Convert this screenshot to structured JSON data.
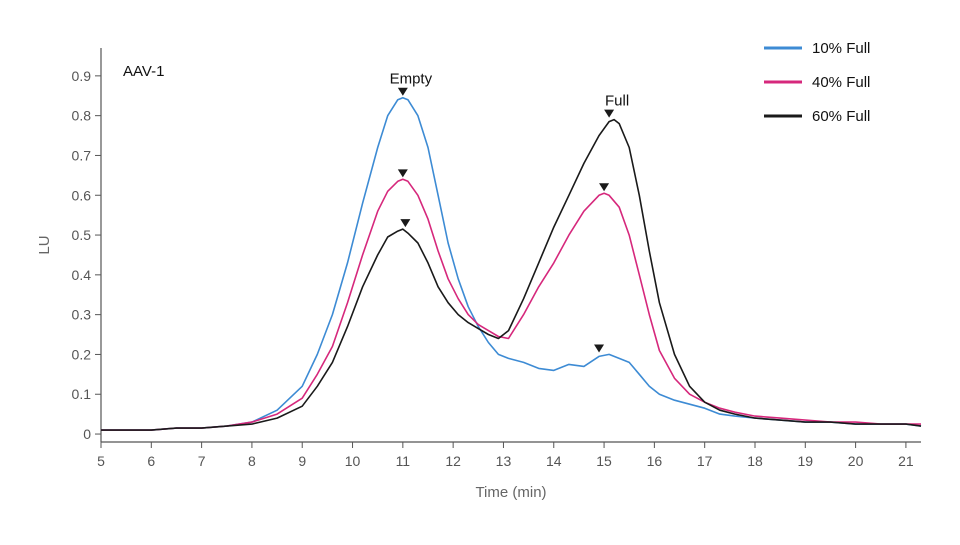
{
  "chart_data": {
    "type": "line",
    "panel_label": "AAV-1",
    "xlabel": "Time (min)",
    "ylabel": "LU",
    "xlim": [
      5,
      21.3
    ],
    "ylim": [
      -0.02,
      0.97
    ],
    "x_ticks": [
      5,
      6,
      7,
      8,
      9,
      10,
      11,
      12,
      13,
      14,
      15,
      16,
      17,
      18,
      19,
      20,
      21
    ],
    "y_ticks": [
      0,
      0.1,
      0.2,
      0.3,
      0.4,
      0.5,
      0.6,
      0.7,
      0.8,
      0.9
    ],
    "grid": false,
    "legend_position": "top-right",
    "series": [
      {
        "name": "10% Full",
        "color": "#3d8bd4",
        "x": [
          5.0,
          5.5,
          6.0,
          6.5,
          7.0,
          7.5,
          8.0,
          8.5,
          9.0,
          9.3,
          9.6,
          9.9,
          10.2,
          10.5,
          10.7,
          10.9,
          11.0,
          11.1,
          11.3,
          11.5,
          11.7,
          11.9,
          12.1,
          12.3,
          12.5,
          12.7,
          12.9,
          13.1,
          13.4,
          13.7,
          14.0,
          14.3,
          14.6,
          14.9,
          15.1,
          15.3,
          15.5,
          15.7,
          15.9,
          16.1,
          16.4,
          16.7,
          17.0,
          17.3,
          17.6,
          18.0,
          18.5,
          19.0,
          19.5,
          20.0,
          20.5,
          21.0,
          21.3
        ],
        "y": [
          0.01,
          0.01,
          0.01,
          0.015,
          0.015,
          0.02,
          0.03,
          0.06,
          0.12,
          0.2,
          0.3,
          0.43,
          0.58,
          0.72,
          0.8,
          0.84,
          0.845,
          0.84,
          0.8,
          0.72,
          0.6,
          0.48,
          0.39,
          0.32,
          0.27,
          0.23,
          0.2,
          0.19,
          0.18,
          0.165,
          0.16,
          0.175,
          0.17,
          0.195,
          0.2,
          0.19,
          0.18,
          0.15,
          0.12,
          0.1,
          0.085,
          0.075,
          0.065,
          0.05,
          0.045,
          0.04,
          0.035,
          0.03,
          0.03,
          0.025,
          0.025,
          0.025,
          0.02
        ]
      },
      {
        "name": "40% Full",
        "color": "#d6287c",
        "x": [
          5.0,
          5.5,
          6.0,
          6.5,
          7.0,
          7.5,
          8.0,
          8.5,
          9.0,
          9.3,
          9.6,
          9.9,
          10.2,
          10.5,
          10.7,
          10.9,
          11.0,
          11.1,
          11.3,
          11.5,
          11.7,
          11.9,
          12.1,
          12.3,
          12.5,
          12.7,
          12.9,
          13.1,
          13.4,
          13.7,
          14.0,
          14.3,
          14.6,
          14.9,
          15.0,
          15.1,
          15.3,
          15.5,
          15.7,
          15.9,
          16.1,
          16.4,
          16.7,
          17.0,
          17.3,
          17.6,
          18.0,
          18.5,
          19.0,
          19.5,
          20.0,
          20.5,
          21.0,
          21.3
        ],
        "y": [
          0.01,
          0.01,
          0.01,
          0.015,
          0.015,
          0.02,
          0.03,
          0.05,
          0.09,
          0.15,
          0.22,
          0.33,
          0.45,
          0.56,
          0.61,
          0.635,
          0.64,
          0.635,
          0.6,
          0.54,
          0.46,
          0.39,
          0.34,
          0.3,
          0.275,
          0.26,
          0.245,
          0.24,
          0.3,
          0.37,
          0.43,
          0.5,
          0.56,
          0.6,
          0.605,
          0.6,
          0.57,
          0.5,
          0.4,
          0.3,
          0.21,
          0.14,
          0.1,
          0.08,
          0.065,
          0.055,
          0.045,
          0.04,
          0.035,
          0.03,
          0.03,
          0.025,
          0.025,
          0.025
        ]
      },
      {
        "name": "60% Full",
        "color": "#1a1a1a",
        "x": [
          5.0,
          5.5,
          6.0,
          6.5,
          7.0,
          7.5,
          8.0,
          8.5,
          9.0,
          9.3,
          9.6,
          9.9,
          10.2,
          10.5,
          10.7,
          10.9,
          11.0,
          11.1,
          11.3,
          11.5,
          11.7,
          11.9,
          12.1,
          12.3,
          12.5,
          12.7,
          12.9,
          13.1,
          13.4,
          13.7,
          14.0,
          14.3,
          14.6,
          14.9,
          15.1,
          15.2,
          15.3,
          15.5,
          15.7,
          15.9,
          16.1,
          16.4,
          16.7,
          17.0,
          17.3,
          17.6,
          18.0,
          18.5,
          19.0,
          19.5,
          20.0,
          20.5,
          21.0,
          21.3
        ],
        "y": [
          0.01,
          0.01,
          0.01,
          0.015,
          0.015,
          0.02,
          0.025,
          0.04,
          0.07,
          0.12,
          0.18,
          0.27,
          0.37,
          0.45,
          0.495,
          0.51,
          0.515,
          0.505,
          0.48,
          0.43,
          0.37,
          0.33,
          0.3,
          0.28,
          0.265,
          0.25,
          0.24,
          0.26,
          0.34,
          0.43,
          0.52,
          0.6,
          0.68,
          0.75,
          0.785,
          0.79,
          0.78,
          0.72,
          0.6,
          0.46,
          0.33,
          0.2,
          0.12,
          0.08,
          0.06,
          0.05,
          0.04,
          0.035,
          0.03,
          0.03,
          0.025,
          0.025,
          0.025,
          0.02
        ]
      }
    ],
    "annotations": [
      {
        "text": "Empty",
        "x": 11.0,
        "y": 0.845
      },
      {
        "text": "Full",
        "x": 15.1,
        "y": 0.79
      }
    ],
    "markers": [
      {
        "x": 11.0,
        "y": 0.845
      },
      {
        "x": 11.0,
        "y": 0.64
      },
      {
        "x": 11.05,
        "y": 0.515
      },
      {
        "x": 15.1,
        "y": 0.79
      },
      {
        "x": 15.0,
        "y": 0.605
      },
      {
        "x": 14.9,
        "y": 0.2
      }
    ]
  }
}
